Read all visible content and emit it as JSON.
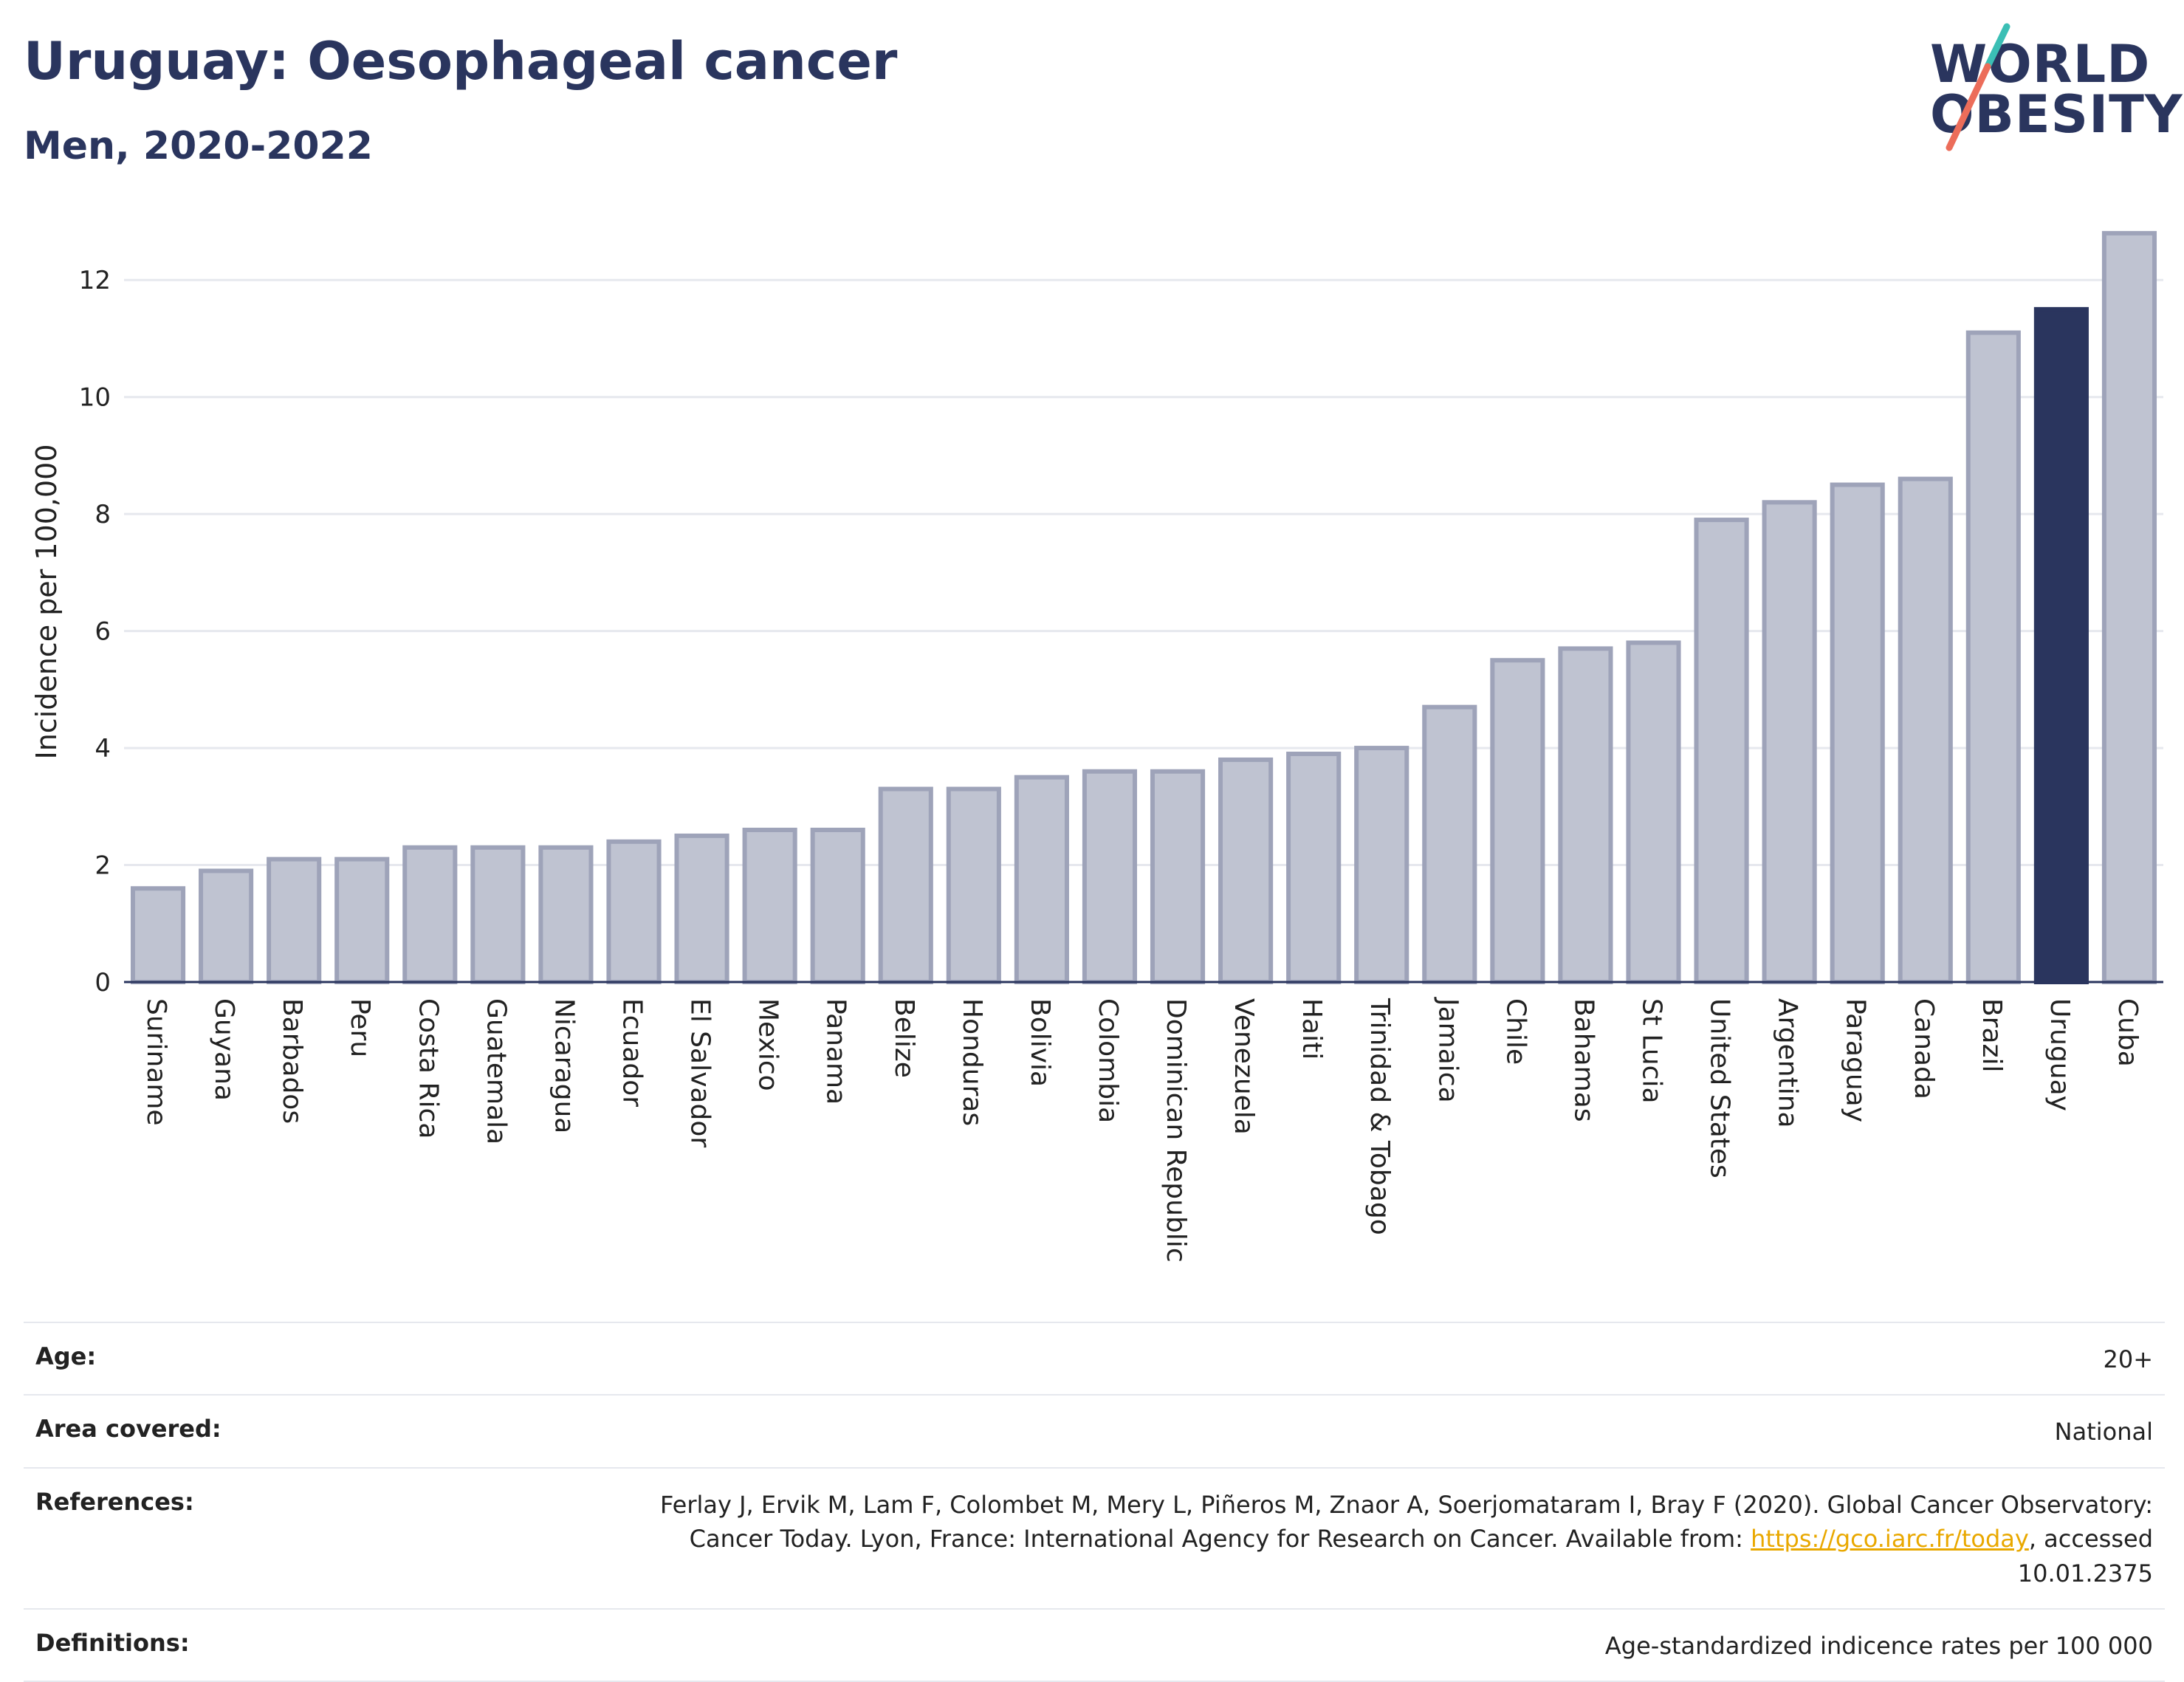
{
  "header": {
    "title": "Uruguay: Oesophageal cancer",
    "subtitle": "Men, 2020-2022"
  },
  "logo": {
    "line1": "WORLD",
    "line2": "OBESITY"
  },
  "chart_data": {
    "type": "bar",
    "ylabel": "Incidence per 100,000",
    "xlabel": "",
    "ylim": [
      0,
      13
    ],
    "yticks": [
      0,
      2,
      4,
      6,
      8,
      10,
      12
    ],
    "grid": true,
    "highlight": "Uruguay",
    "colors": {
      "default": "#bfc3d1",
      "default_border": "#9ea3b9",
      "highlight": "#2a355e"
    },
    "categories": [
      "Suriname",
      "Guyana",
      "Barbados",
      "Peru",
      "Costa Rica",
      "Guatemala",
      "Nicaragua",
      "Ecuador",
      "El Salvador",
      "Mexico",
      "Panama",
      "Belize",
      "Honduras",
      "Bolivia",
      "Colombia",
      "Dominican Republic",
      "Venezuela",
      "Haiti",
      "Trinidad & Tobago",
      "Jamaica",
      "Chile",
      "Bahamas",
      "St Lucia",
      "United States",
      "Argentina",
      "Paraguay",
      "Canada",
      "Brazil",
      "Uruguay",
      "Cuba"
    ],
    "values": [
      1.6,
      1.9,
      2.1,
      2.1,
      2.3,
      2.3,
      2.3,
      2.4,
      2.5,
      2.6,
      2.6,
      3.3,
      3.3,
      3.5,
      3.6,
      3.6,
      3.8,
      3.9,
      4.0,
      4.7,
      5.5,
      5.7,
      5.8,
      7.9,
      8.2,
      8.5,
      8.6,
      11.1,
      11.5,
      12.8
    ]
  },
  "meta": {
    "age": {
      "label": "Age:",
      "value": "20+"
    },
    "area": {
      "label": "Area covered:",
      "value": "National"
    },
    "references": {
      "label": "References:",
      "text_before": "Ferlay J, Ervik M, Lam F, Colombet M, Mery L, Piñeros M, Znaor A, Soerjomataram I, Bray F (2020). Global Cancer Observatory: Cancer Today. Lyon, France: International Agency for Research on Cancer. Available from: ",
      "link": "https://gco.iarc.fr/today",
      "text_after": ", accessed 10.01.2375"
    },
    "definitions": {
      "label": "Definitions:",
      "value": "Age-standardized indicence rates per 100 000"
    }
  }
}
